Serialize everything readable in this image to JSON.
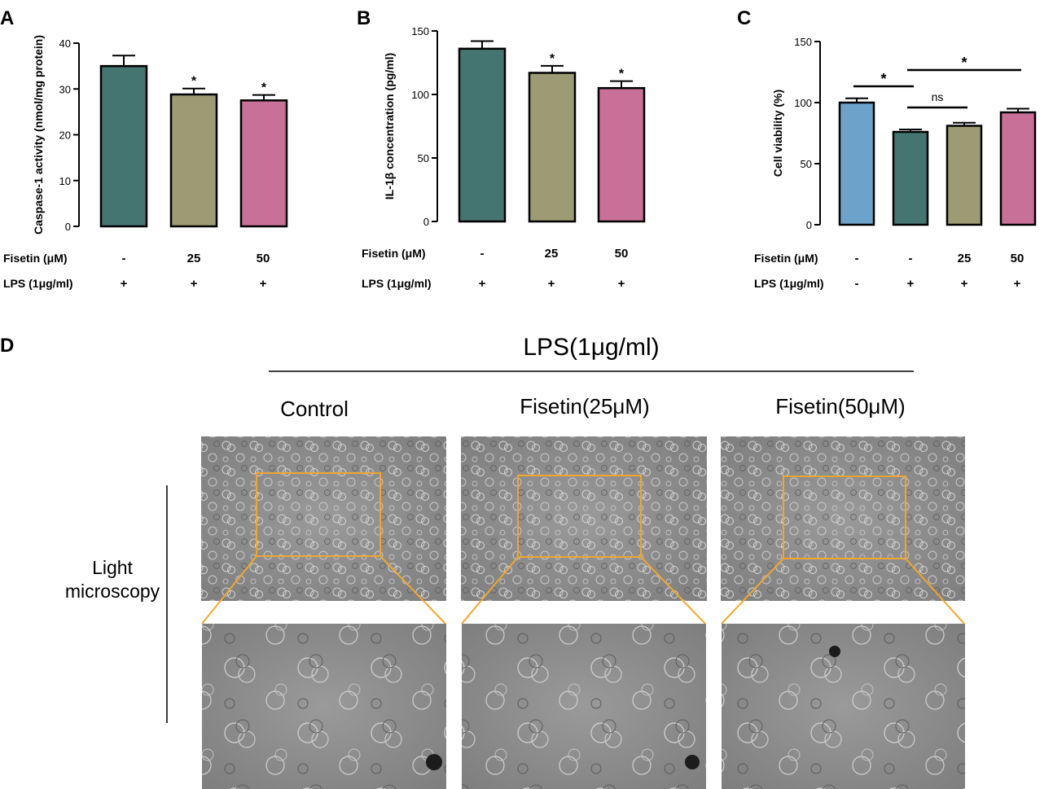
{
  "panels": {
    "A": {
      "letter": "A"
    },
    "B": {
      "letter": "B"
    },
    "C": {
      "letter": "C"
    },
    "D": {
      "letter": "D"
    }
  },
  "chart_data": [
    {
      "type": "bar",
      "panel": "A",
      "ylabel": "Caspase-1 activity (nmol/mg protein)",
      "ylim": [
        0,
        40
      ],
      "yticks": [
        0,
        10,
        20,
        30,
        40
      ],
      "bars": [
        {
          "value": 35.0,
          "error": 2.3,
          "color": "#447571",
          "sig": ""
        },
        {
          "value": 28.8,
          "error": 1.3,
          "color": "#9c9b74",
          "sig": "*"
        },
        {
          "value": 27.5,
          "error": 1.2,
          "color": "#c97098",
          "sig": "*"
        }
      ],
      "condition_rows": [
        {
          "label": "Fisetin (μM)",
          "values": [
            "-",
            "25",
            "50"
          ]
        },
        {
          "label": "LPS (1μg/ml)",
          "values": [
            "+",
            "+",
            "+"
          ]
        }
      ]
    },
    {
      "type": "bar",
      "panel": "B",
      "ylabel": "IL-1β concentration (pg/ml)",
      "ylim": [
        0,
        150
      ],
      "yticks": [
        0,
        50,
        100,
        150
      ],
      "bars": [
        {
          "value": 136,
          "error": 6,
          "color": "#447571",
          "sig": ""
        },
        {
          "value": 117,
          "error": 5.5,
          "color": "#9c9b74",
          "sig": "*"
        },
        {
          "value": 105,
          "error": 5.5,
          "color": "#c97098",
          "sig": "*"
        }
      ],
      "condition_rows": [
        {
          "label": "Fisetin (μM)",
          "values": [
            "-",
            "25",
            "50"
          ]
        },
        {
          "label": "LPS (1μg/ml)",
          "values": [
            "+",
            "+",
            "+"
          ]
        }
      ]
    },
    {
      "type": "bar",
      "panel": "C",
      "ylabel": "Cell viability (%)",
      "ylim": [
        0,
        150
      ],
      "yticks": [
        0,
        50,
        100,
        150
      ],
      "bars": [
        {
          "value": 100,
          "error": 3.5,
          "color": "#6da2cb",
          "sig": ""
        },
        {
          "value": 76,
          "error": 2,
          "color": "#447571",
          "sig": ""
        },
        {
          "value": 81,
          "error": 2.5,
          "color": "#9c9b74",
          "sig": ""
        },
        {
          "value": 92,
          "error": 3,
          "color": "#c97098",
          "sig": ""
        }
      ],
      "brackets": [
        {
          "from": 0,
          "to": 1,
          "label": "*"
        },
        {
          "from": 1,
          "to": 2,
          "label": "ns"
        },
        {
          "from": 1,
          "to": 3,
          "label": "*"
        }
      ],
      "condition_rows": [
        {
          "label": "Fisetin (μM)",
          "values": [
            "-",
            "-",
            "25",
            "50"
          ]
        },
        {
          "label": "LPS (1μg/ml)",
          "values": [
            "-",
            "+",
            "+",
            "+"
          ]
        }
      ]
    }
  ],
  "microscopy": {
    "header": "LPS(1μg/ml)",
    "columns": [
      "Control",
      "Fisetin(25μM)",
      "Fisetin(50μM)"
    ],
    "row_label_line1": "Light",
    "row_label_line2": "microscopy",
    "highlight_color": "#f0a630"
  }
}
